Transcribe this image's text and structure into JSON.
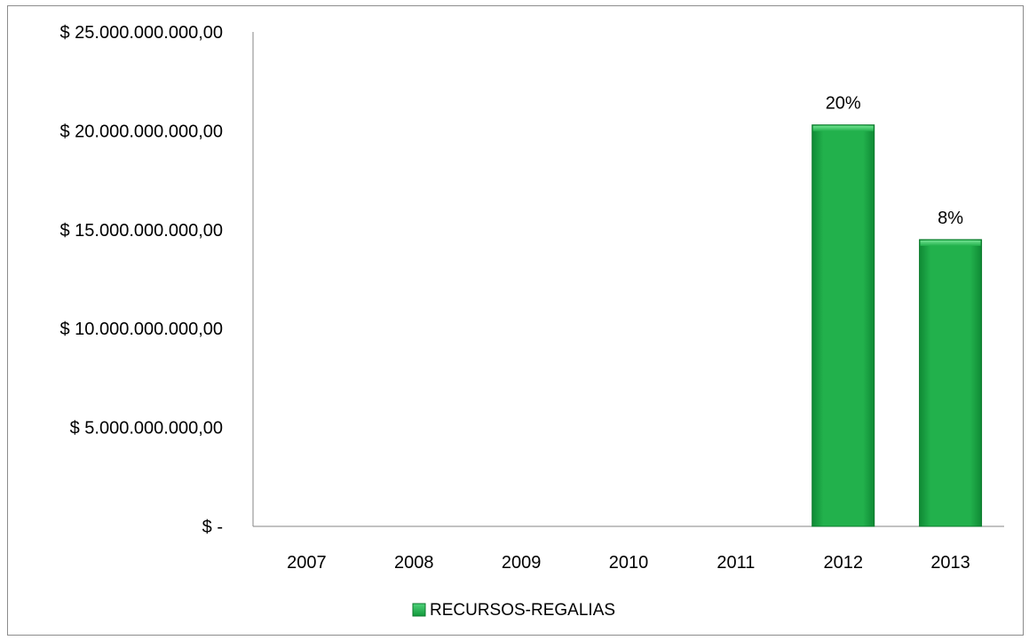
{
  "chart_data": {
    "type": "bar",
    "categories": [
      "2007",
      "2008",
      "2009",
      "2010",
      "2011",
      "2012",
      "2013"
    ],
    "series": [
      {
        "name": "RECURSOS-REGALIAS",
        "values": [
          0,
          0,
          0,
          0,
          0,
          20300000000,
          14500000000
        ],
        "data_labels": [
          "",
          "",
          "",
          "",
          "",
          "20%",
          "8%"
        ],
        "color": "#22b14c"
      }
    ],
    "ylim": [
      0,
      25000000000
    ],
    "y_ticks": [
      {
        "value": 0,
        "label": "$ -"
      },
      {
        "value": 5000000000,
        "label": "$ 5.000.000.000,00"
      },
      {
        "value": 10000000000,
        "label": "$ 10.000.000.000,00"
      },
      {
        "value": 15000000000,
        "label": "$ 15.000.000.000,00"
      },
      {
        "value": 20000000000,
        "label": "$ 20.000.000.000,00"
      },
      {
        "value": 25000000000,
        "label": "$ 25.000.000.000,00"
      }
    ],
    "grid": false,
    "legend_position": "bottom",
    "title": "",
    "xlabel": "",
    "ylabel": ""
  }
}
